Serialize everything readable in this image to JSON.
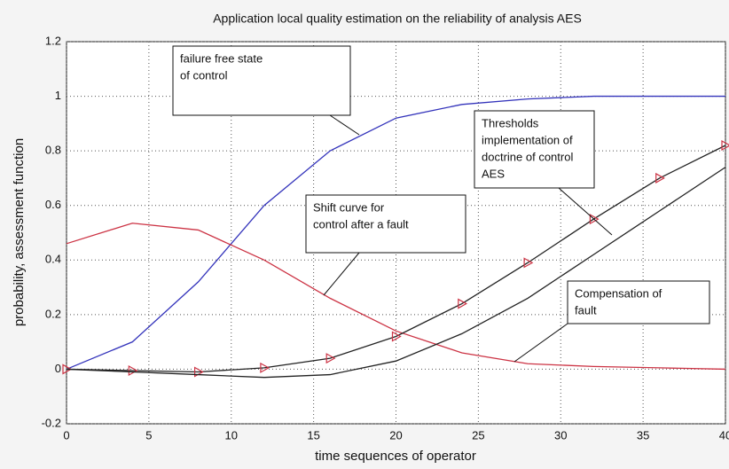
{
  "chart_data": {
    "type": "line",
    "title": "Application local quality estimation on the reliability of analysis AES",
    "xlabel": "time sequences of operator",
    "ylabel": "probability, assessment function",
    "x": [
      0,
      4,
      8,
      12,
      16,
      20,
      24,
      28,
      32,
      36,
      40
    ],
    "series": [
      {
        "color": "#3333bb",
        "values": [
          0,
          0.1,
          0.32,
          0.6,
          0.8,
          0.92,
          0.97,
          0.99,
          1.0,
          1.0,
          1.0
        ]
      },
      {
        "color": "#cc3344",
        "values": [
          0.46,
          0.535,
          0.51,
          0.4,
          0.26,
          0.14,
          0.06,
          0.02,
          0.01,
          0.005,
          0
        ]
      },
      {
        "color": "#222222",
        "marker": "triangle",
        "marker_color": "#cc3344",
        "values": [
          0,
          -0.005,
          -0.01,
          0.005,
          0.04,
          0.12,
          0.24,
          0.39,
          0.55,
          0.7,
          0.82
        ]
      },
      {
        "color": "#222222",
        "values": [
          0,
          -0.01,
          -0.02,
          -0.03,
          -0.02,
          0.03,
          0.13,
          0.26,
          0.42,
          0.58,
          0.74
        ]
      }
    ],
    "xlim": [
      0,
      40
    ],
    "xticks": [
      0,
      5,
      10,
      15,
      20,
      25,
      30,
      35,
      40
    ],
    "ylim": [
      -0.2,
      1.2
    ],
    "yticks": [
      -0.2,
      0,
      0.2,
      0.4,
      0.6,
      0.8,
      1,
      1.2
    ],
    "grid": true,
    "annotations": [
      {
        "lines": [
          "failure free state",
          "of control"
        ]
      },
      {
        "lines": [
          "Shift curve for",
          " control after a fault"
        ]
      },
      {
        "lines": [
          "Thresholds",
          "implementation of",
          "doctrine of control",
          "AES"
        ]
      },
      {
        "lines": [
          "Compensation of",
          "fault"
        ]
      }
    ]
  }
}
